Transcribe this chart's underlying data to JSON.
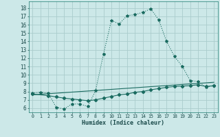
{
  "xlabel": "Humidex (Indice chaleur)",
  "bg_color": "#cce8e8",
  "grid_color": "#aacccc",
  "line_color": "#1a6b60",
  "x_ticks": [
    0,
    1,
    2,
    3,
    4,
    5,
    6,
    7,
    8,
    9,
    10,
    11,
    12,
    13,
    14,
    15,
    16,
    17,
    18,
    19,
    20,
    21,
    22,
    23
  ],
  "y_ticks": [
    6,
    7,
    8,
    9,
    10,
    11,
    12,
    13,
    14,
    15,
    16,
    17,
    18
  ],
  "xlim": [
    -0.5,
    23.5
  ],
  "ylim": [
    5.5,
    18.8
  ],
  "curve1_x": [
    0,
    1,
    2,
    3,
    4,
    5,
    6,
    7,
    8,
    9,
    10,
    11,
    12,
    13,
    14,
    15,
    16,
    17,
    18,
    19,
    20,
    21,
    22,
    23
  ],
  "curve1_y": [
    7.8,
    7.9,
    7.8,
    6.1,
    5.9,
    6.5,
    6.5,
    6.2,
    8.1,
    12.5,
    16.5,
    16.1,
    17.1,
    17.2,
    17.5,
    17.9,
    16.6,
    14.0,
    12.2,
    11.0,
    9.3,
    9.2,
    8.5,
    8.7
  ],
  "curve2_x": [
    0,
    2,
    3,
    4,
    5,
    6,
    7,
    8,
    9,
    10,
    11,
    12,
    13,
    14,
    15,
    16,
    17,
    18,
    19,
    20,
    21,
    22,
    23
  ],
  "curve2_y": [
    7.7,
    7.5,
    7.35,
    7.2,
    7.1,
    7.0,
    6.9,
    7.0,
    7.2,
    7.4,
    7.6,
    7.7,
    7.9,
    8.0,
    8.2,
    8.35,
    8.5,
    8.6,
    8.65,
    8.7,
    8.8,
    8.6,
    8.7
  ],
  "curve3_x": [
    0,
    23
  ],
  "curve3_y": [
    7.6,
    9.1
  ]
}
